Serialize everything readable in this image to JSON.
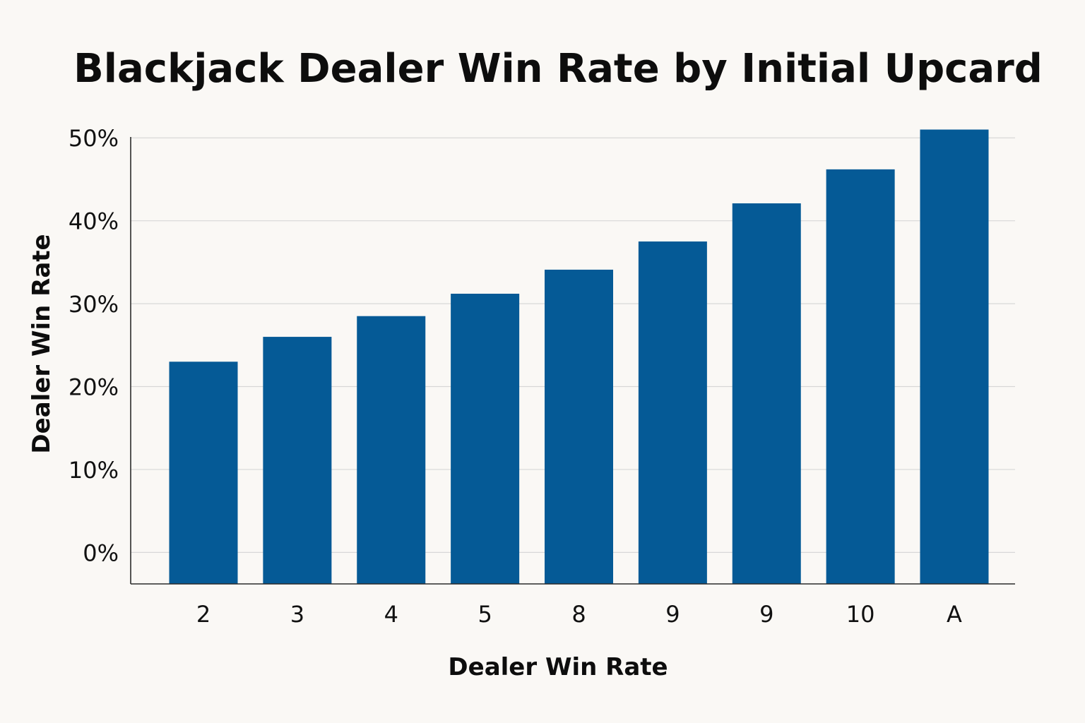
{
  "chart_data": {
    "type": "bar",
    "title": "Blackjack Dealer Win Rate by Initial Upcard",
    "xlabel": "Dealer Win Rate",
    "ylabel": "Dealer Win Rate",
    "categories": [
      "2",
      "3",
      "4",
      "5",
      "8",
      "9",
      "9",
      "10",
      "A"
    ],
    "values": [
      23,
      26,
      28.5,
      31.2,
      34.1,
      37.5,
      42.1,
      46.2,
      51
    ],
    "yticks": [
      "0%",
      "10%",
      "20%",
      "30%",
      "40%",
      "50%"
    ],
    "ytick_values": [
      0,
      10,
      20,
      30,
      40,
      50
    ],
    "ylim": [
      -3.8,
      51
    ],
    "grid": true,
    "legend": "none",
    "bar_color": "#055a96",
    "gridline_color": "#d7d7d7",
    "background_color": "#faf8f5"
  }
}
